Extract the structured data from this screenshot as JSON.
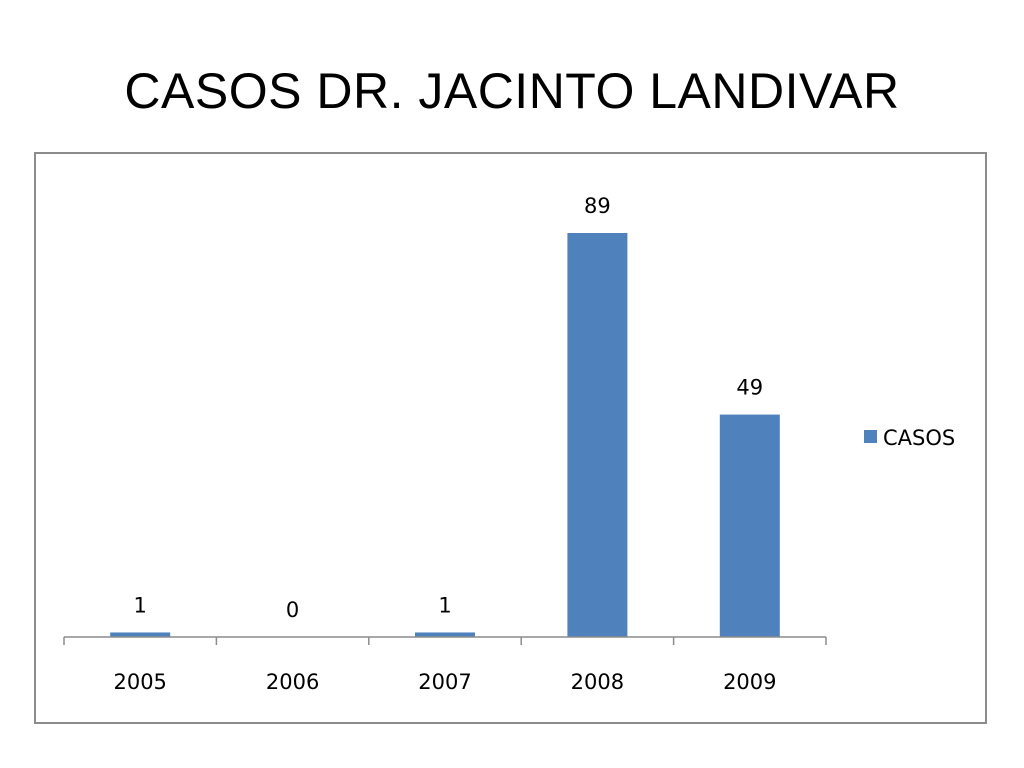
{
  "slide": {
    "title": "CASOS DR. JACINTO LANDIVAR"
  },
  "chart_data": {
    "type": "bar",
    "categories": [
      "2005",
      "2006",
      "2007",
      "2008",
      "2009"
    ],
    "series": [
      {
        "name": "CASOS",
        "values": [
          1,
          0,
          1,
          89,
          49
        ],
        "color": "#4f81bd"
      }
    ],
    "data_labels": true,
    "ylim": [
      0,
      89
    ],
    "grid": false,
    "legend": "right"
  }
}
